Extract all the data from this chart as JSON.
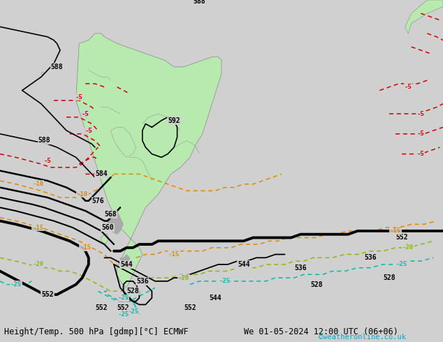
{
  "title_left": "Height/Temp. 500 hPa [gdmp][°C] ECMWF",
  "title_right": "We 01-05-2024 12:00 UTC (06+06)",
  "watermark": "©weatheronline.co.uk",
  "bg_color": "#d0d0d0",
  "land_color": "#b8eab0",
  "land_edge": "#888888",
  "highland_color": "#aaaaaa",
  "fig_width": 6.34,
  "fig_height": 4.9,
  "dpi": 100,
  "label_fs": 6.5,
  "bottom_fs": 8.5,
  "watermark_color": "#00aacc",
  "xlim": [
    -105,
    35
  ],
  "ylim": [
    -72,
    22
  ],
  "red": "#cc0000",
  "orange": "#dd8800",
  "green": "#88bb00",
  "cyan": "#00bbaa"
}
